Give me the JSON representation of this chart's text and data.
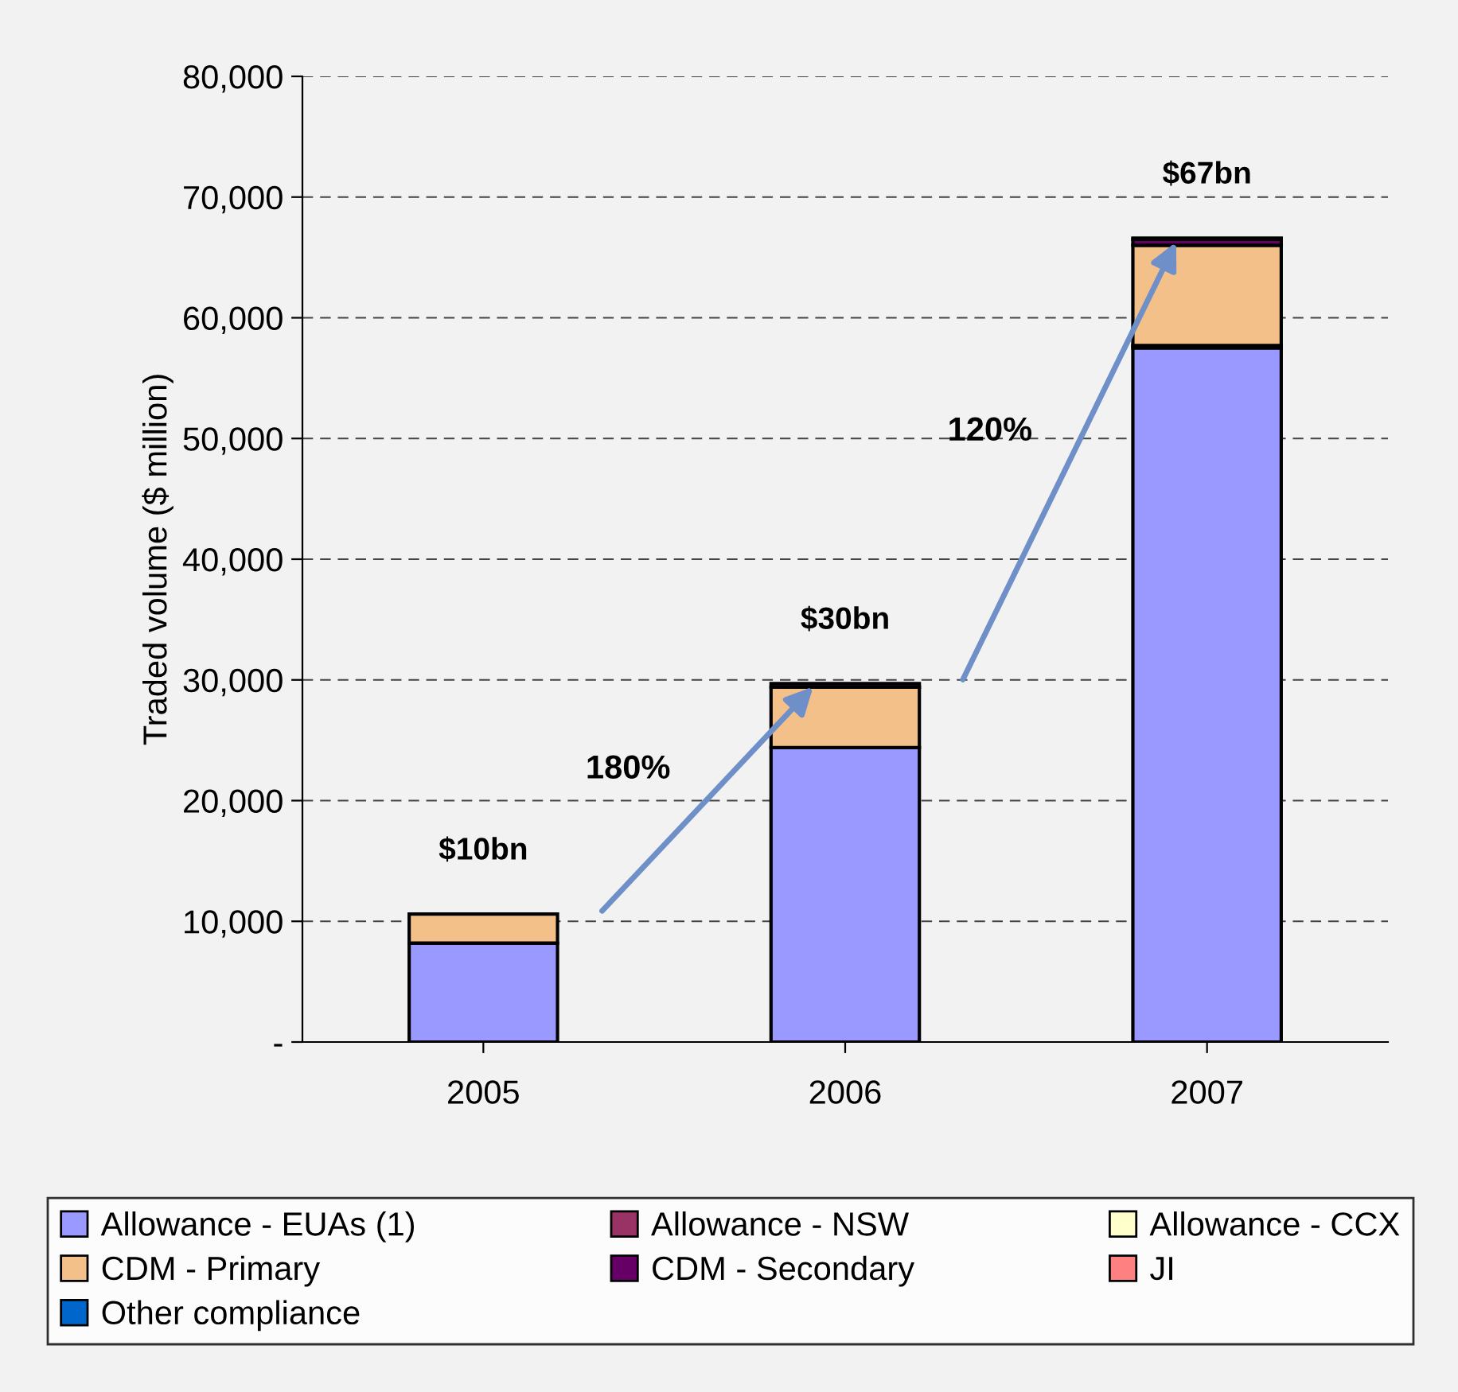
{
  "chart_data": {
    "type": "bar",
    "stacked": true,
    "ylabel": "Traded volume ($ million)",
    "categories": [
      "2005",
      "2006",
      "2007"
    ],
    "series": [
      {
        "name": "Allowance - EUAs (1)",
        "color": "#9999ff",
        "values": [
          8200,
          24400,
          57500
        ]
      },
      {
        "name": "Allowance - NSW",
        "color": "#993366",
        "values": [
          null,
          null,
          200
        ]
      },
      {
        "name": "Allowance - CCX",
        "color": "#ffffcc",
        "values": [
          0,
          null,
          null
        ]
      },
      {
        "name": "CDM - Primary",
        "color": "#f4c08a",
        "values": [
          2400,
          5000,
          8300
        ]
      },
      {
        "name": "CDM - Secondary",
        "color": "#660066",
        "values": [
          0,
          300,
          500
        ]
      },
      {
        "name": "JI",
        "color": "#ff8080",
        "values": [
          0,
          0,
          null
        ]
      },
      {
        "name": "Other compliance",
        "color": "#0066cc",
        "values": [
          0,
          0,
          100
        ]
      }
    ],
    "ylim": [
      0,
      80000
    ],
    "yticks": [
      {
        "value": 0,
        "label": "-"
      },
      {
        "value": 10000,
        "label": "10,000"
      },
      {
        "value": 20000,
        "label": "20,000"
      },
      {
        "value": 30000,
        "label": "30,000"
      },
      {
        "value": 40000,
        "label": "40,000"
      },
      {
        "value": 50000,
        "label": "50,000"
      },
      {
        "value": 60000,
        "label": "60,000"
      },
      {
        "value": 70000,
        "label": "70,000"
      },
      {
        "value": 80000,
        "label": "80,000"
      }
    ],
    "grid": "y",
    "legend": "bottom",
    "totals": [
      "$10bn",
      "$30bn",
      "$67bn"
    ],
    "annotations": [
      "180%",
      "120%"
    ]
  }
}
